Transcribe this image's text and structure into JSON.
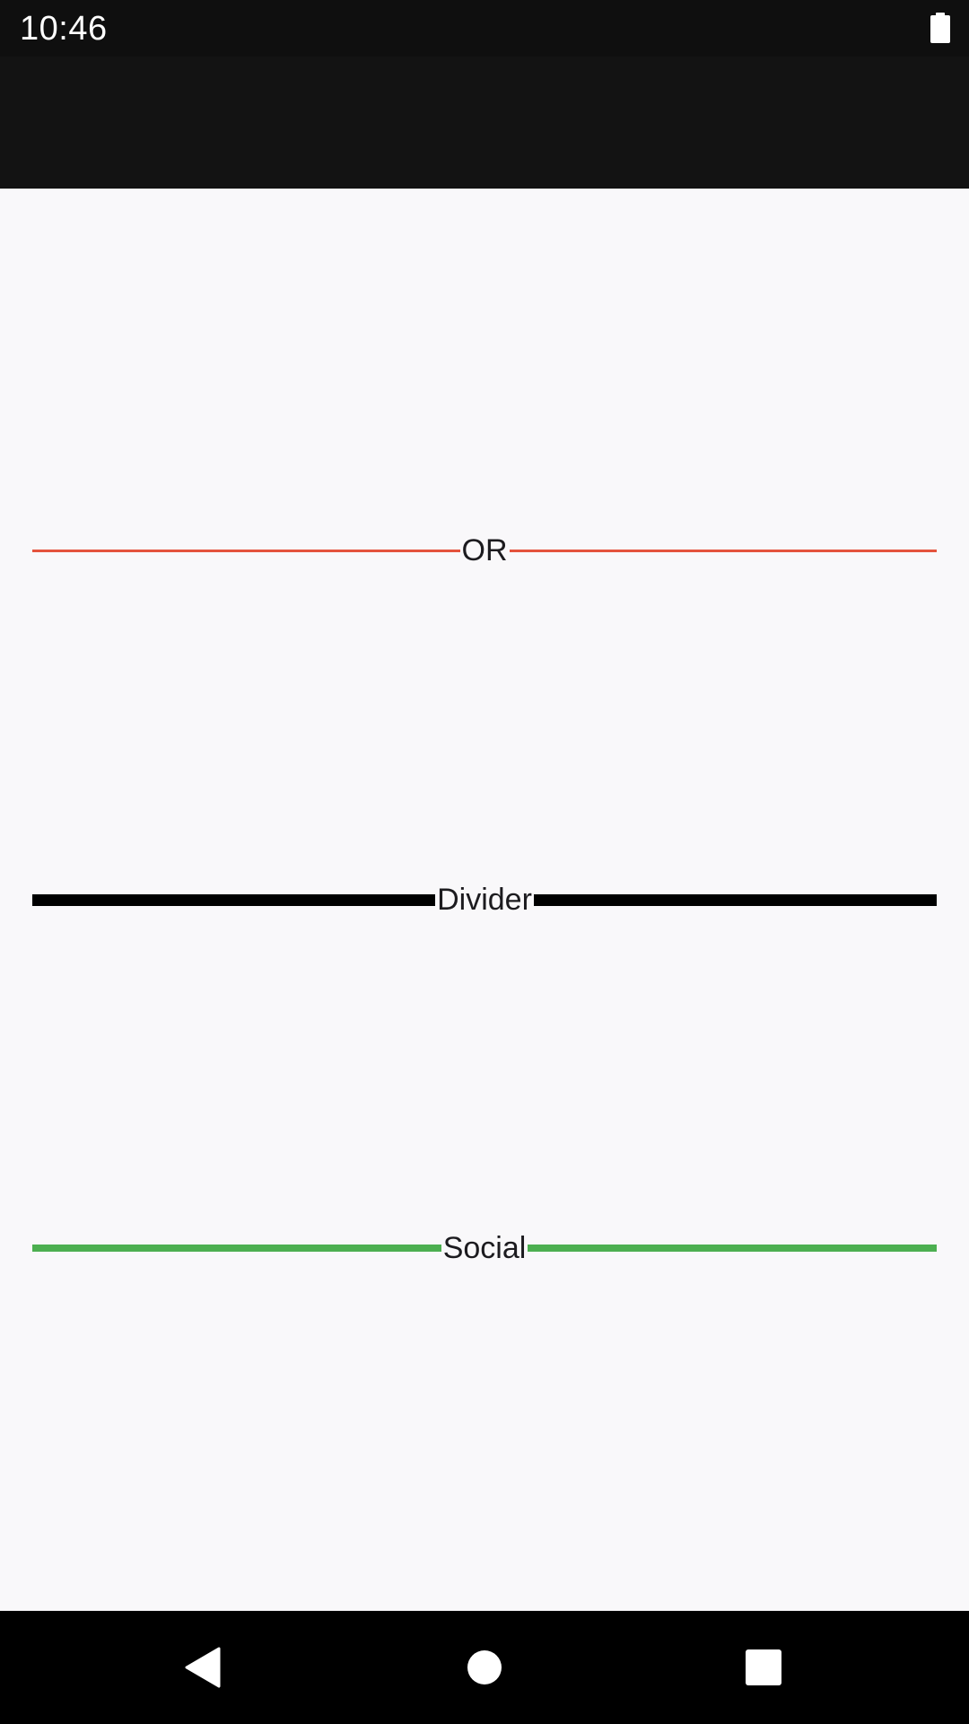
{
  "status_bar": {
    "time": "10:46",
    "battery_icon": "battery-full-icon"
  },
  "app_bar": {
    "title": ""
  },
  "dividers": [
    {
      "label": "OR",
      "color": "#e4533d"
    },
    {
      "label": "Divider",
      "color": "#000000"
    },
    {
      "label": "Social",
      "color": "#4caf50"
    }
  ],
  "nav_bar": {
    "back_icon": "back-triangle-icon",
    "home_icon": "home-circle-icon",
    "recents_icon": "recents-square-icon"
  },
  "colors": {
    "status_bar_bg": "#0f0f0f",
    "app_bar_bg": "#131313",
    "content_bg": "#f9f8fa",
    "nav_bar_bg": "#000000"
  }
}
